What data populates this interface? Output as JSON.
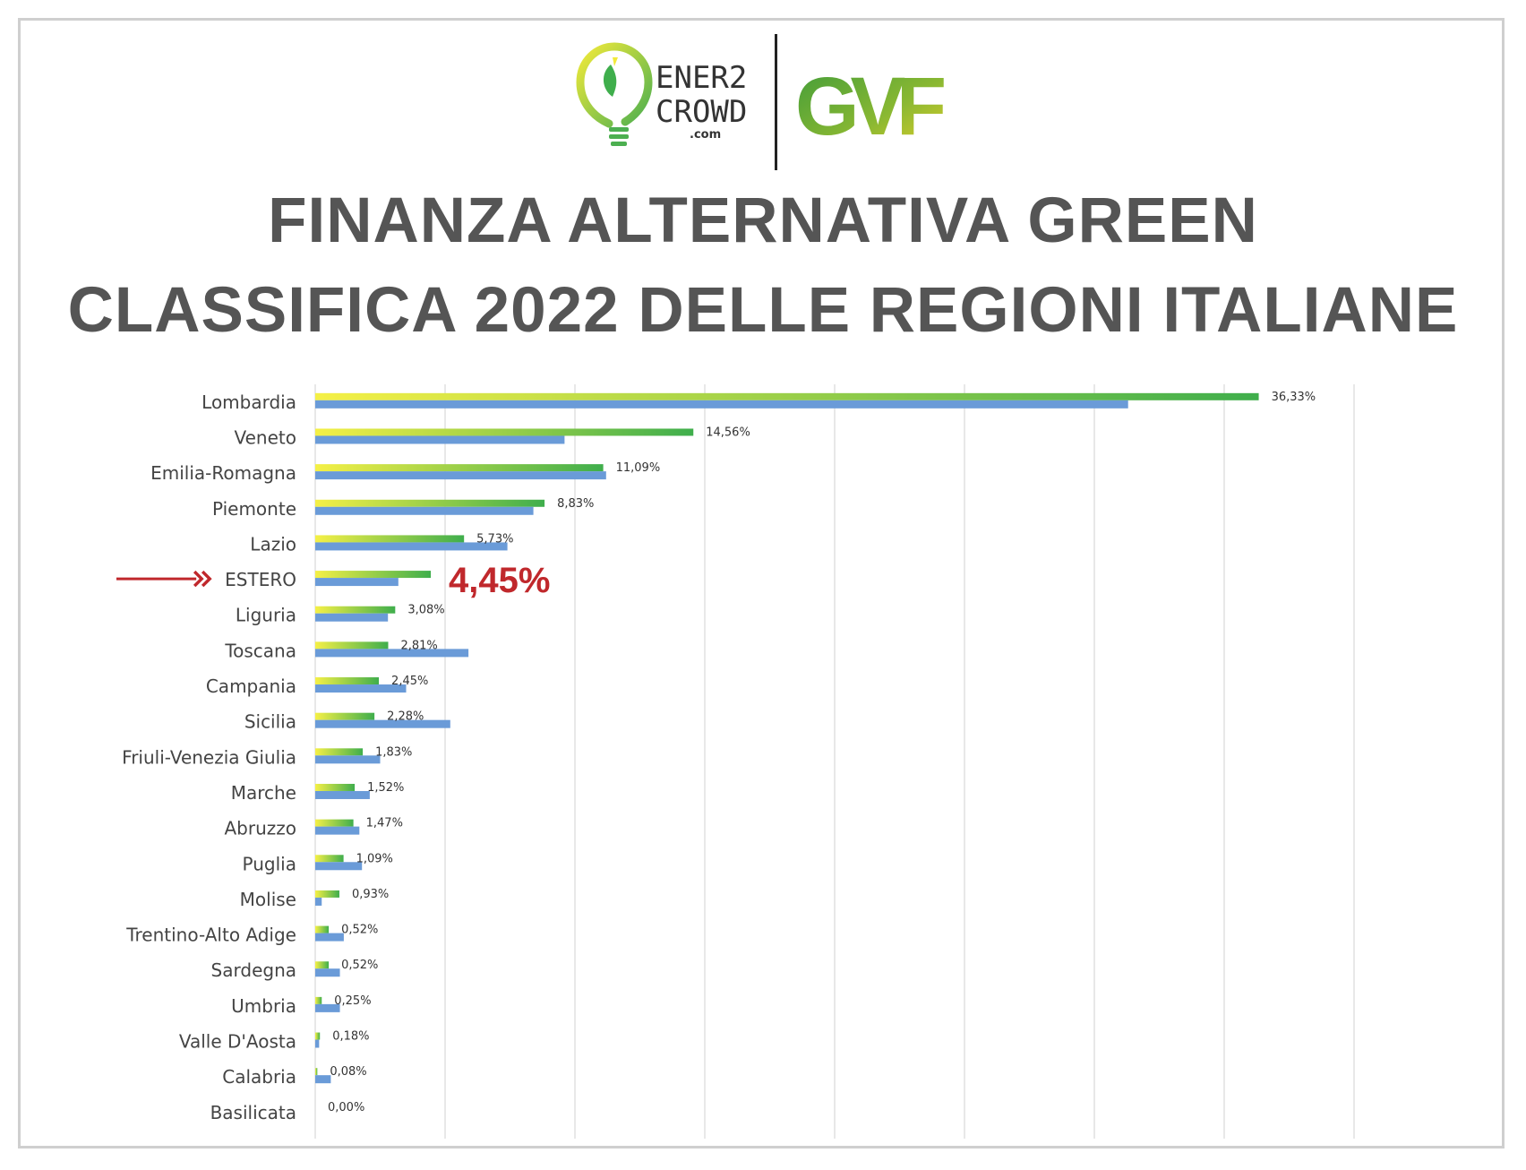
{
  "logos": {
    "ener2crowd_line1": "ENER2",
    "ener2crowd_line2": "CROWD",
    "ener2crowd_line3": ".com",
    "gvf": "GVF"
  },
  "title": {
    "line1": "FINANZA ALTERNATIVA GREEN",
    "line2": "CLASSIFICA 2022 DELLE REGIONI ITALIANE"
  },
  "colors": {
    "green_bar_start": "#f5f046",
    "green_bar_end": "#3fae4c",
    "blue_bar": "#6a9bd8",
    "highlight": "#c0282c",
    "title": "#555555",
    "gridline": "#d9d9d9"
  },
  "chart_data": {
    "type": "bar",
    "orientation": "horizontal",
    "grid": true,
    "xlim": [
      0,
      40
    ],
    "categories": [
      "Lombardia",
      "Veneto",
      "Emilia-Romagna",
      "Piemonte",
      "Lazio",
      "ESTERO",
      "Liguria",
      "Toscana",
      "Campania",
      "Sicilia",
      "Friuli-Venezia Giulia",
      "Marche",
      "Abruzzo",
      "Puglia",
      "Molise",
      "Trentino-Alto Adige",
      "Sardegna",
      "Umbria",
      "Valle D'Aosta",
      "Calabria",
      "Basilicata"
    ],
    "series": [
      {
        "values": [
          36.33,
          14.56,
          11.09,
          8.83,
          5.73,
          4.45,
          3.08,
          2.81,
          2.45,
          2.28,
          1.83,
          1.52,
          1.47,
          1.09,
          0.93,
          0.52,
          0.52,
          0.25,
          0.18,
          0.08,
          0.0
        ],
        "labels": [
          "36,33%",
          "14,56%",
          "11,09%",
          "8,83%",
          "5,73%",
          "4,45%",
          "3,08%",
          "2,81%",
          "2,45%",
          "2,28%",
          "1,83%",
          "1,52%",
          "1,47%",
          "1,09%",
          "0,93%",
          "0,52%",
          "0,52%",
          "0,25%",
          "0,18%",
          "0,08%",
          "0,00%"
        ]
      },
      {
        "values": [
          31.3,
          9.6,
          11.2,
          8.4,
          7.4,
          3.2,
          2.8,
          5.9,
          3.5,
          5.2,
          2.5,
          2.1,
          1.7,
          1.8,
          0.25,
          1.1,
          0.95,
          0.95,
          0.15,
          0.6,
          0.0
        ]
      }
    ],
    "highlight": {
      "category": "ESTERO",
      "label": "4,45%"
    }
  }
}
